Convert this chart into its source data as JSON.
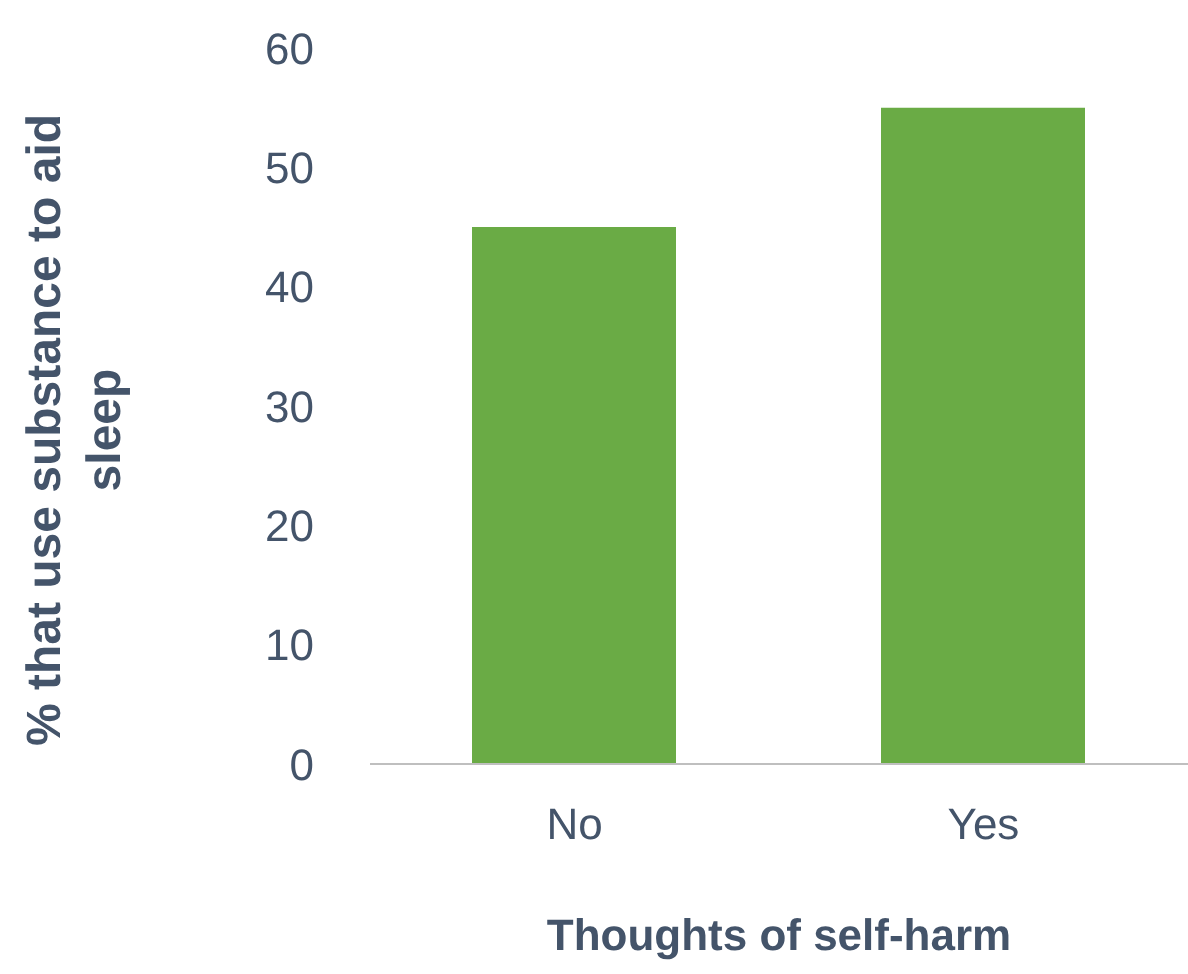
{
  "chart_data": {
    "type": "bar",
    "xlabel": "Thoughts of self-harm",
    "ylabel": "% that use substance to aid sleep",
    "categories": [
      "No",
      "Yes"
    ],
    "values": [
      45,
      55
    ],
    "color": "#6aab45",
    "ylim": [
      0,
      60
    ],
    "yticks": [
      0,
      10,
      20,
      30,
      40,
      50,
      60
    ],
    "grid": false,
    "legend": false
  }
}
